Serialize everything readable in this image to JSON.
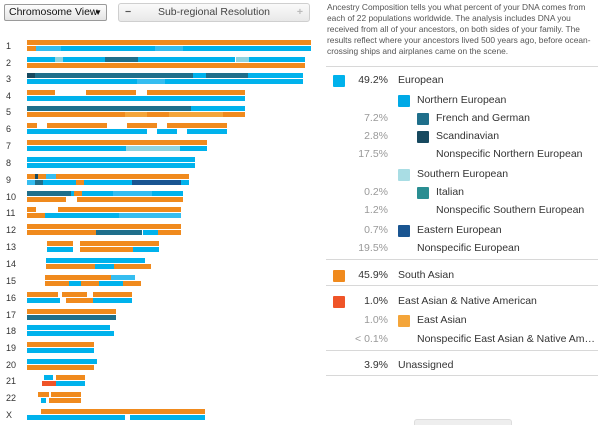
{
  "controls": {
    "view_select": "Chromosome View",
    "resolution_label": "Sub-regional Resolution",
    "minus": "−",
    "plus": "+"
  },
  "description": "Ancestry Composition tells you what percent of your DNA comes from each of 22 populations worldwide. The analysis includes DNA you received from all of your ancestors, on both sides of your family. The results reflect where your ancestors lived 500 years ago, before ocean-crossing ships and airplanes came on the scene.",
  "colors": {
    "european": "#00b2ec",
    "northern_european": "#00a9e6",
    "french_german": "#1f6f8b",
    "scandinavian": "#17495f",
    "southern_european": "#a9dde4",
    "italian": "#2a8e92",
    "eastern_european": "#1a5591",
    "south_asian": "#f08a1d",
    "east_asian_native_american": "#ef5428",
    "east_asian": "#f4a53a",
    "light_blue": "#35bdf0",
    "pale_teal": "#8fd3df"
  },
  "composition": [
    {
      "pct": "49.2%",
      "label": "European",
      "swatch": "european",
      "level": 0,
      "dark": true
    },
    {
      "pct": "",
      "label": "Northern European",
      "swatch": "northern_european",
      "level": 1,
      "dark": true
    },
    {
      "pct": "7.2%",
      "label": "French and German",
      "swatch": "french_german",
      "level": 2,
      "dark": false
    },
    {
      "pct": "2.8%",
      "label": "Scandinavian",
      "swatch": "scandinavian",
      "level": 2,
      "dark": false
    },
    {
      "pct": "17.5%",
      "label": "Nonspecific Northern European",
      "swatch": "",
      "level": 2,
      "dark": false
    },
    {
      "pct": "",
      "label": "Southern European",
      "swatch": "southern_european",
      "level": 1,
      "dark": true
    },
    {
      "pct": "0.2%",
      "label": "Italian",
      "swatch": "italian",
      "level": 2,
      "dark": false
    },
    {
      "pct": "1.2%",
      "label": "Nonspecific Southern European",
      "swatch": "",
      "level": 2,
      "dark": false
    },
    {
      "pct": "0.7%",
      "label": "Eastern European",
      "swatch": "eastern_european",
      "level": 1,
      "dark": false
    },
    {
      "pct": "19.5%",
      "label": "Nonspecific European",
      "swatch": "",
      "level": 1,
      "dark": false
    },
    {
      "pct": "45.9%",
      "label": "South Asian",
      "swatch": "south_asian",
      "level": 0,
      "dark": true
    },
    {
      "pct": "1.0%",
      "label": "East Asian & Native American",
      "swatch": "east_asian_native_american",
      "level": 0,
      "dark": true
    },
    {
      "pct": "1.0%",
      "label": "East Asian",
      "swatch": "east_asian",
      "level": 1,
      "dark": false
    },
    {
      "pct": "< 0.1%",
      "label": "Nonspecific East Asian & Native American",
      "swatch": "",
      "level": 1,
      "dark": false
    },
    {
      "pct": "3.9%",
      "label": "Unassigned",
      "swatch": "",
      "level": 0,
      "dark": true
    }
  ],
  "chromosomes": [
    {
      "label": "1",
      "top": [
        [
          0,
          1.0,
          "south_asian"
        ]
      ],
      "bottom": [
        [
          0,
          0.03,
          "south_asian"
        ],
        [
          0.03,
          0.12,
          "light_blue"
        ],
        [
          0.12,
          0.45,
          "european"
        ],
        [
          0.45,
          0.55,
          "light_blue"
        ],
        [
          0.55,
          1.0,
          "european"
        ]
      ]
    },
    {
      "label": "2",
      "top": [
        [
          0,
          0.1,
          "european"
        ],
        [
          0.1,
          0.13,
          "pale_teal"
        ],
        [
          0.13,
          0.28,
          "european"
        ],
        [
          0.28,
          0.4,
          "french_german"
        ],
        [
          0.4,
          0.75,
          "european"
        ],
        [
          0.75,
          0.8,
          "pale_teal"
        ],
        [
          0.8,
          1.0,
          "european"
        ]
      ],
      "bottom": [
        [
          0,
          1.0,
          "south_asian"
        ]
      ]
    },
    {
      "label": "3",
      "top": [
        [
          0,
          0.03,
          "scandinavian"
        ],
        [
          0.03,
          0.6,
          "french_german"
        ],
        [
          0.6,
          0.65,
          "european"
        ],
        [
          0.65,
          0.8,
          "french_german"
        ],
        [
          0.8,
          1.0,
          "european"
        ]
      ],
      "bottom": [
        [
          0,
          0.4,
          "european"
        ],
        [
          0.4,
          0.5,
          "light_blue"
        ],
        [
          0.5,
          1.0,
          "european"
        ]
      ]
    },
    {
      "label": "4",
      "top": [
        [
          0,
          0.13,
          "south_asian"
        ],
        [
          0.27,
          0.5,
          "south_asian"
        ],
        [
          0.55,
          1.0,
          "south_asian"
        ]
      ],
      "bottom": [
        [
          0,
          1.0,
          "european"
        ]
      ]
    },
    {
      "label": "5",
      "top": [
        [
          0,
          0.75,
          "french_german"
        ],
        [
          0.75,
          1.0,
          "european"
        ]
      ],
      "bottom": [
        [
          0,
          0.45,
          "south_asian"
        ],
        [
          0.45,
          0.55,
          "east_asian"
        ],
        [
          0.55,
          0.65,
          "south_asian"
        ],
        [
          0.65,
          0.9,
          "east_asian"
        ],
        [
          0.9,
          1.0,
          "south_asian"
        ]
      ]
    },
    {
      "label": "6",
      "top": [
        [
          0,
          0.05,
          "south_asian"
        ],
        [
          0.1,
          0.4,
          "south_asian"
        ],
        [
          0.5,
          0.65,
          "south_asian"
        ],
        [
          0.7,
          1.0,
          "south_asian"
        ]
      ],
      "bottom": [
        [
          0,
          0.6,
          "european"
        ],
        [
          0.65,
          0.75,
          "european"
        ],
        [
          0.8,
          1.0,
          "european"
        ]
      ]
    },
    {
      "label": "7",
      "top": [
        [
          0,
          1.0,
          "south_asian"
        ]
      ],
      "bottom": [
        [
          0,
          0.55,
          "european"
        ],
        [
          0.55,
          0.85,
          "pale_teal"
        ],
        [
          0.85,
          1.0,
          "european"
        ]
      ]
    },
    {
      "label": "8",
      "top": [
        [
          0,
          1.0,
          "european"
        ]
      ],
      "bottom": [
        [
          0,
          1.0,
          "european"
        ]
      ]
    },
    {
      "label": "9",
      "top": [
        [
          0,
          0.05,
          "south_asian"
        ],
        [
          0.05,
          0.07,
          "scandinavian"
        ],
        [
          0.07,
          0.12,
          "south_asian"
        ],
        [
          0.12,
          0.18,
          "light_blue"
        ],
        [
          0.18,
          0.7,
          "south_asian"
        ],
        [
          0.7,
          1.0,
          "south_asian"
        ]
      ],
      "bottom": [
        [
          0,
          0.05,
          "light_blue"
        ],
        [
          0.05,
          0.1,
          "french_german"
        ],
        [
          0.1,
          0.3,
          "european"
        ],
        [
          0.3,
          0.35,
          "south_asian"
        ],
        [
          0.35,
          0.65,
          "european"
        ],
        [
          0.65,
          0.95,
          "eastern_european"
        ],
        [
          0.95,
          1.0,
          "european"
        ]
      ]
    },
    {
      "label": "10",
      "top": [
        [
          0,
          0.28,
          "french_german"
        ],
        [
          0.28,
          0.3,
          "european"
        ],
        [
          0.3,
          0.35,
          "south_asian"
        ],
        [
          0.35,
          0.55,
          "european"
        ],
        [
          0.55,
          0.8,
          "light_blue"
        ],
        [
          0.8,
          1.0,
          "european"
        ]
      ],
      "bottom": [
        [
          0,
          0.25,
          "south_asian"
        ],
        [
          0.32,
          1.0,
          "south_asian"
        ]
      ]
    },
    {
      "label": "11",
      "top": [
        [
          0,
          0.06,
          "south_asian"
        ],
        [
          0.2,
          1.0,
          "south_asian"
        ]
      ],
      "bottom": [
        [
          0,
          0.12,
          "south_asian"
        ],
        [
          0.12,
          0.6,
          "european"
        ],
        [
          0.6,
          1.0,
          "light_blue"
        ]
      ]
    },
    {
      "label": "12",
      "top": [
        [
          0,
          1.0,
          "south_asian"
        ]
      ],
      "bottom": [
        [
          0,
          0.45,
          "south_asian"
        ],
        [
          0.45,
          0.75,
          "french_german"
        ],
        [
          0.75,
          0.85,
          "european"
        ],
        [
          0.85,
          1.0,
          "south_asian"
        ]
      ]
    },
    {
      "label": "13",
      "top": [
        [
          0.15,
          0.35,
          "south_asian"
        ],
        [
          0.4,
          1.0,
          "south_asian"
        ]
      ],
      "bottom": [
        [
          0.15,
          0.35,
          "european"
        ],
        [
          0.4,
          0.8,
          "south_asian"
        ],
        [
          0.8,
          1.0,
          "european"
        ]
      ]
    },
    {
      "label": "14",
      "top": [
        [
          0.15,
          0.95,
          "european"
        ]
      ],
      "bottom": [
        [
          0.15,
          0.55,
          "south_asian"
        ],
        [
          0.55,
          0.7,
          "european"
        ],
        [
          0.7,
          1.0,
          "south_asian"
        ]
      ]
    },
    {
      "label": "15",
      "top": [
        [
          0.15,
          0.7,
          "south_asian"
        ],
        [
          0.7,
          0.9,
          "light_blue"
        ]
      ],
      "bottom": [
        [
          0.15,
          0.35,
          "south_asian"
        ],
        [
          0.35,
          0.45,
          "european"
        ],
        [
          0.45,
          0.6,
          "south_asian"
        ],
        [
          0.6,
          0.8,
          "european"
        ],
        [
          0.8,
          0.95,
          "south_asian"
        ]
      ]
    },
    {
      "label": "16",
      "top": [
        [
          0,
          0.28,
          "south_asian"
        ],
        [
          0.32,
          0.55,
          "south_asian"
        ],
        [
          0.6,
          0.95,
          "south_asian"
        ]
      ],
      "bottom": [
        [
          0,
          0.3,
          "european"
        ],
        [
          0.35,
          0.6,
          "south_asian"
        ],
        [
          0.6,
          0.95,
          "european"
        ]
      ]
    },
    {
      "label": "17",
      "top": [
        [
          0,
          0.95,
          "south_asian"
        ]
      ],
      "bottom": [
        [
          0,
          0.95,
          "french_german"
        ]
      ]
    },
    {
      "label": "18",
      "top": [
        [
          0,
          0.9,
          "european"
        ]
      ],
      "bottom": [
        [
          0,
          0.95,
          "european"
        ]
      ]
    },
    {
      "label": "19",
      "top": [
        [
          0,
          0.95,
          "south_asian"
        ]
      ],
      "bottom": [
        [
          0,
          0.95,
          "european"
        ]
      ]
    },
    {
      "label": "20",
      "top": [
        [
          0,
          0.95,
          "european"
        ]
      ],
      "bottom": [
        [
          0,
          0.9,
          "south_asian"
        ]
      ]
    },
    {
      "label": "21",
      "top": [
        [
          0.3,
          0.45,
          "european"
        ],
        [
          0.5,
          1.0,
          "south_asian"
        ]
      ],
      "bottom": [
        [
          0.25,
          0.5,
          "east_asian_native_american"
        ],
        [
          0.5,
          1.0,
          "european"
        ]
      ]
    },
    {
      "label": "22",
      "top": [
        [
          0.2,
          0.4,
          "south_asian"
        ],
        [
          0.45,
          1.0,
          "south_asian"
        ]
      ],
      "bottom": [
        [
          0.25,
          0.35,
          "european"
        ],
        [
          0.4,
          1.0,
          "south_asian"
        ]
      ]
    },
    {
      "label": "X",
      "top": [
        [
          0.08,
          1.0,
          "south_asian"
        ]
      ],
      "bottom": [
        [
          0,
          0.55,
          "european"
        ],
        [
          0.58,
          1.0,
          "european"
        ]
      ]
    }
  ]
}
